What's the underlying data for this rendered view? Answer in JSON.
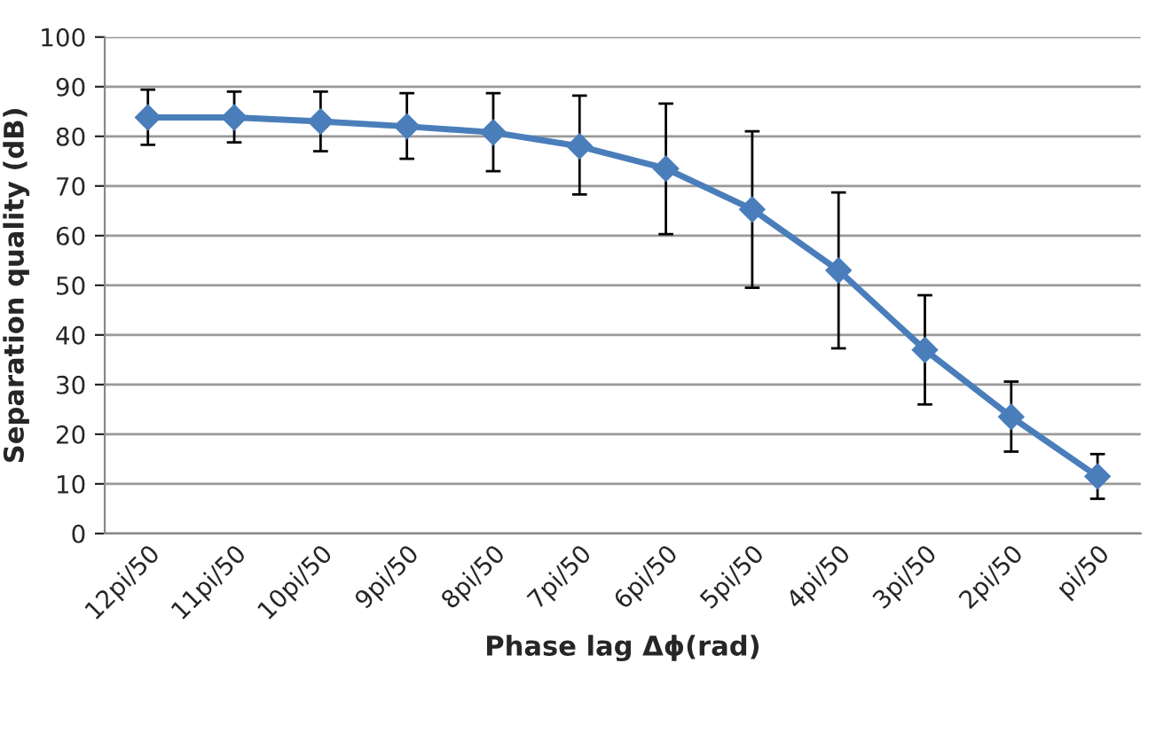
{
  "chart_data": {
    "type": "line",
    "xlabel": "Phase lag Δϕ(rad)",
    "ylabel": "Separation quality (dB)",
    "categories": [
      "12pi/50",
      "11pi/50",
      "10pi/50",
      "9pi/50",
      "8pi/50",
      "7pi/50",
      "6pi/50",
      "5pi/50",
      "4pi/50",
      "3pi/50",
      "2pi/50",
      "pi/50"
    ],
    "series": [
      {
        "color": "#4a7ebb",
        "values": [
          83.8,
          83.8,
          83,
          82,
          80.8,
          78,
          73.5,
          65.3,
          53,
          37,
          23.5,
          11.5
        ],
        "errors": [
          [
            78.3,
            89.4
          ],
          [
            78.8,
            89
          ],
          [
            77,
            89
          ],
          [
            75.5,
            88.7
          ],
          [
            73,
            88.7
          ],
          [
            68.3,
            88.2
          ],
          [
            60.3,
            86.6
          ],
          [
            49.5,
            81
          ],
          [
            37.3,
            68.7
          ],
          [
            26,
            48
          ],
          [
            16.5,
            30.6
          ],
          [
            7,
            16
          ]
        ]
      }
    ],
    "ylim": [
      0,
      100
    ],
    "yticks": [
      0,
      10,
      20,
      30,
      40,
      50,
      60,
      70,
      80,
      90,
      100
    ],
    "grid": "y",
    "marker": "diamond",
    "line_style": "solid",
    "legend": false
  }
}
